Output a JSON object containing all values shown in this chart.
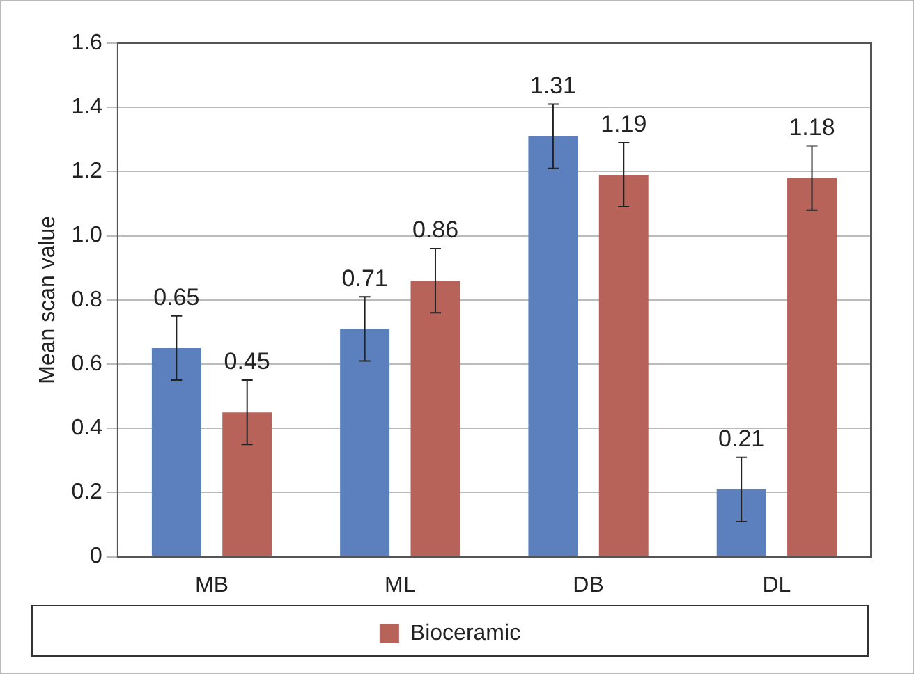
{
  "chart_data": {
    "type": "bar",
    "ylabel": "Mean scan value",
    "categories": [
      "MB",
      "ML",
      "DB",
      "DL"
    ],
    "series": [
      {
        "color": "#5b80bd",
        "values": [
          0.65,
          0.71,
          1.31,
          0.21
        ],
        "errors": [
          0.1,
          0.1,
          0.1,
          0.1
        ]
      },
      {
        "name": "Bioceramic",
        "color": "#b8635a",
        "values": [
          0.45,
          0.86,
          1.19,
          1.18
        ],
        "errors": [
          0.1,
          0.1,
          0.1,
          0.1
        ]
      }
    ],
    "ylim": [
      0,
      1.6
    ],
    "yticks": [
      0,
      0.2,
      0.4,
      0.6,
      0.8,
      {
        "value": 1,
        "label": "1.0"
      },
      1.2,
      1.4,
      1.6
    ],
    "grid": "y",
    "legend": "bottom",
    "data_labels": true
  }
}
